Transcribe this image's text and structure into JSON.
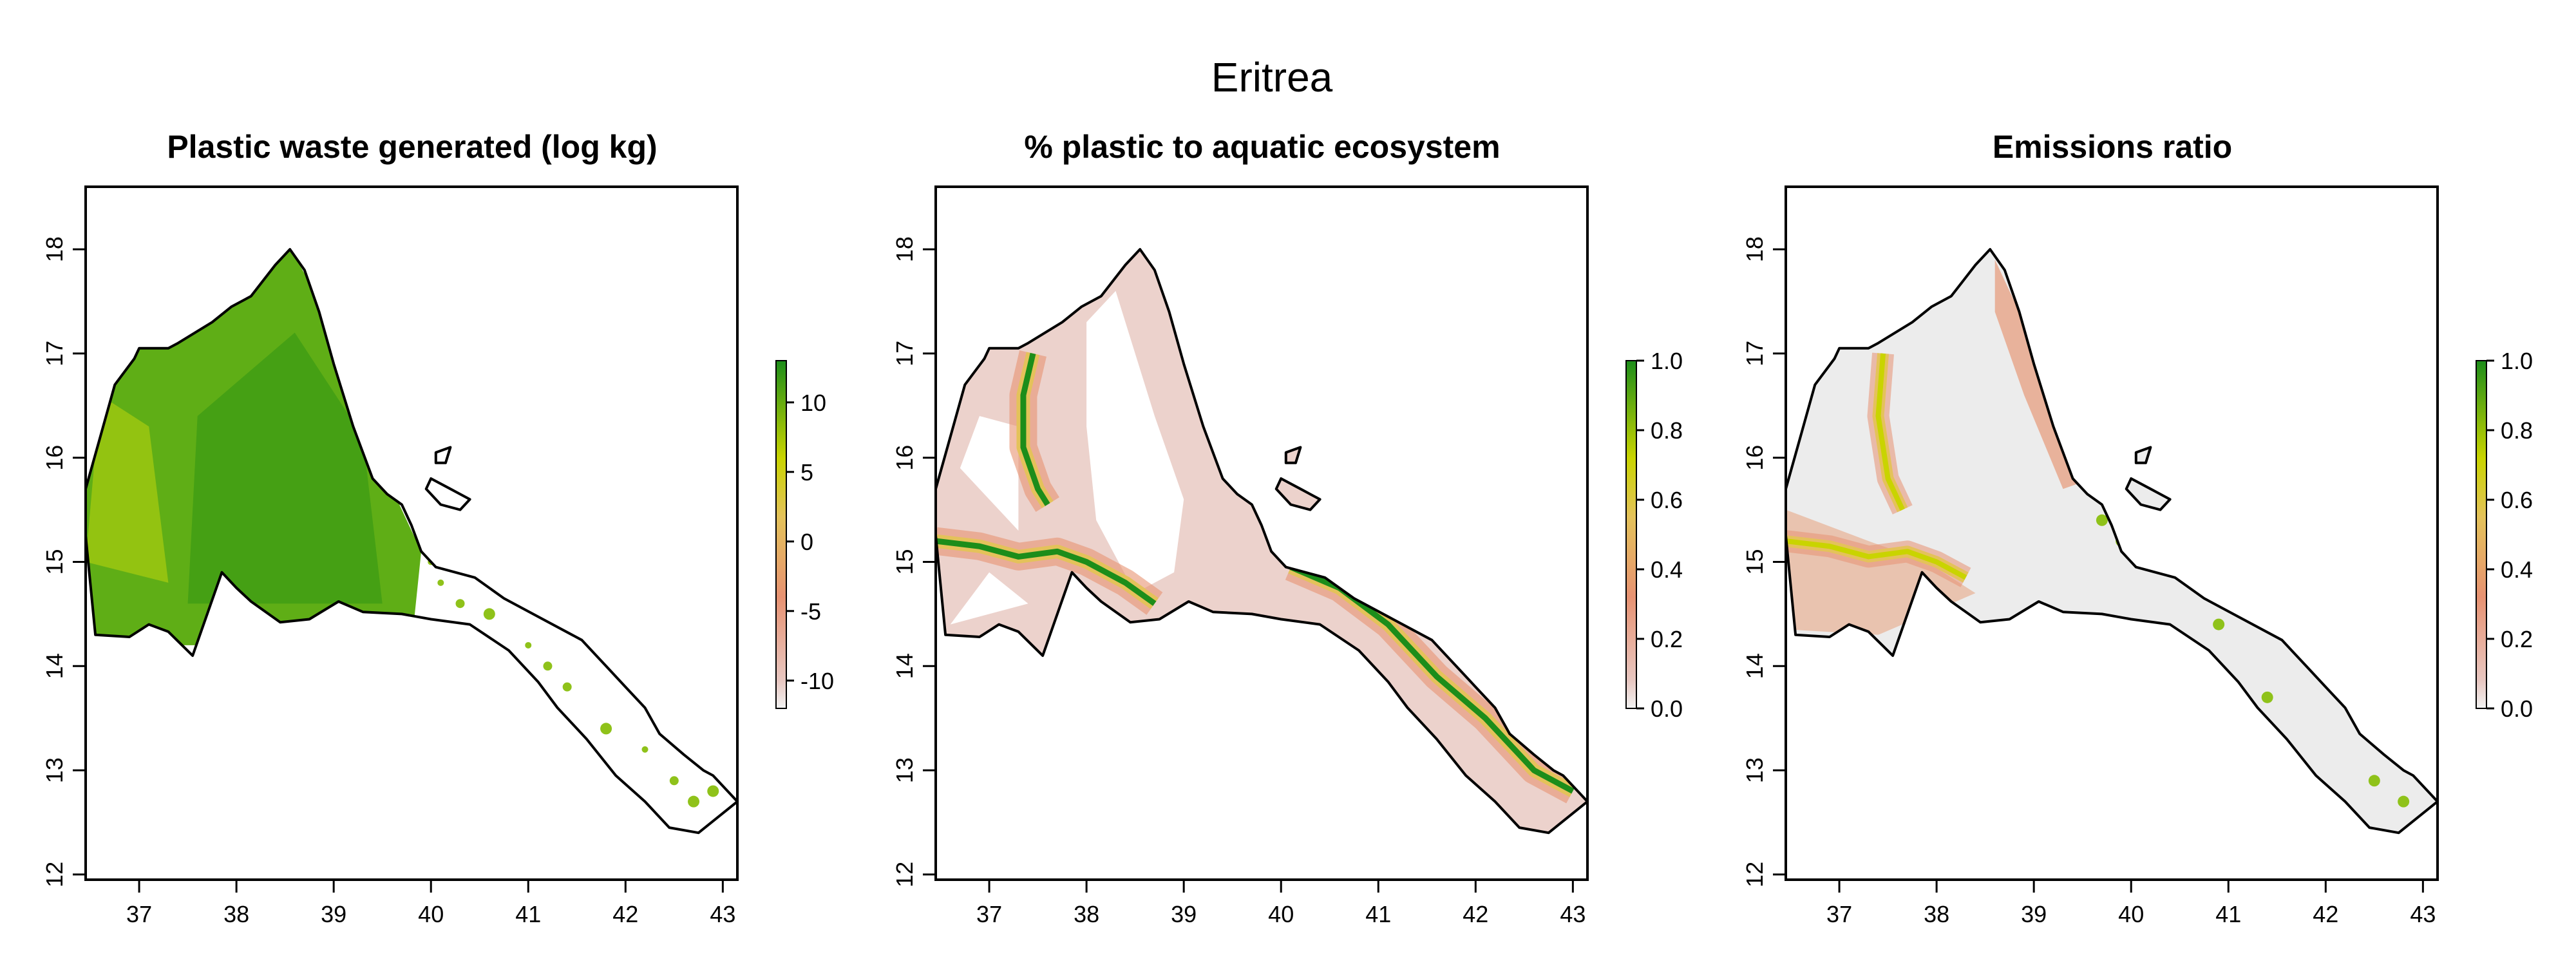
{
  "figure": {
    "title": "Eritrea"
  },
  "palette": {
    "low": "#e8c7c1",
    "mid_low": "#e79272",
    "mid": "#e4c25a",
    "mid_high": "#c9d400",
    "high": "#1c8d1a",
    "zero": "#f5f5f5",
    "outline": "#000000"
  },
  "chart_data": [
    {
      "type": "map",
      "title": "Plastic waste generated (log kg)",
      "x_ticks": [
        "37",
        "38",
        "39",
        "40",
        "41",
        "42",
        "43"
      ],
      "y_ticks": [
        "12",
        "13",
        "14",
        "15",
        "16",
        "17",
        "18"
      ],
      "xlim": [
        36.45,
        43.15
      ],
      "ylim": [
        11.95,
        18.6
      ],
      "legend": {
        "ticks": [
          "10",
          "5",
          "0",
          "-5",
          "-10"
        ],
        "range": [
          -12,
          13
        ]
      },
      "fill": "plastic"
    },
    {
      "type": "map",
      "title": "% plastic to aquatic ecosystem",
      "x_ticks": [
        "37",
        "38",
        "39",
        "40",
        "41",
        "42",
        "43"
      ],
      "y_ticks": [
        "12",
        "13",
        "14",
        "15",
        "16",
        "17",
        "18"
      ],
      "xlim": [
        36.45,
        43.15
      ],
      "ylim": [
        11.95,
        18.6
      ],
      "legend": {
        "ticks": [
          "1.0",
          "0.8",
          "0.6",
          "0.4",
          "0.2",
          "0.0"
        ],
        "range": [
          0,
          1
        ]
      },
      "fill": "aquatic"
    },
    {
      "type": "map",
      "title": "Emissions ratio",
      "x_ticks": [
        "37",
        "38",
        "39",
        "40",
        "41",
        "42",
        "43"
      ],
      "y_ticks": [
        "12",
        "13",
        "14",
        "15",
        "16",
        "17",
        "18"
      ],
      "xlim": [
        36.45,
        43.15
      ],
      "ylim": [
        11.95,
        18.6
      ],
      "legend": {
        "ticks": [
          "1.0",
          "0.8",
          "0.6",
          "0.4",
          "0.2",
          "0.0"
        ],
        "range": [
          0,
          1
        ]
      },
      "fill": "emissions"
    }
  ]
}
